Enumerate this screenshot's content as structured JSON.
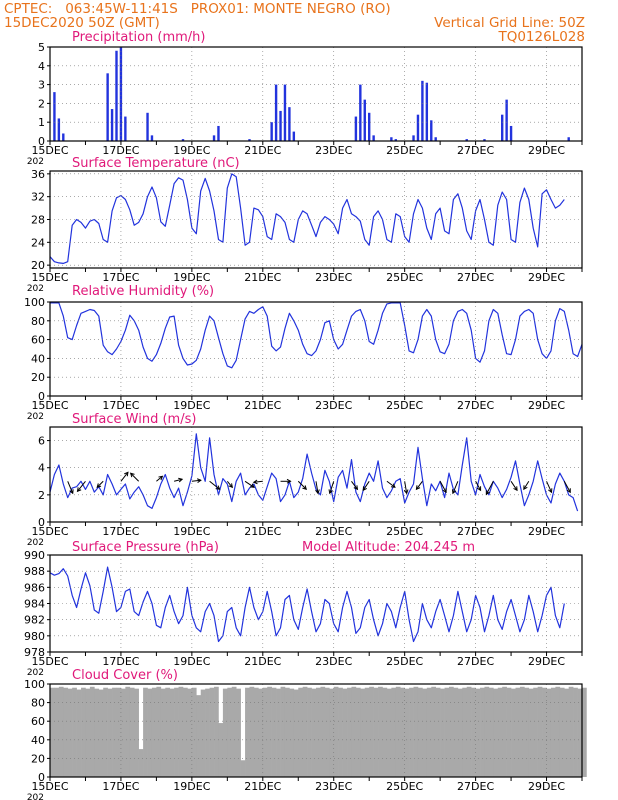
{
  "header": {
    "line1_left": "CPTEC:   063:45W-11:41S   PROX01: MONTE NEGRO (RO)",
    "line2_left": "15DEC2020 50Z (GMT)",
    "line2_right": "Vertical Grid Line: 50Z",
    "line3_right": "TQ0126L028"
  },
  "colors": {
    "header": "#e8731c",
    "panel_title": "#e0197a",
    "series": "#2233dd",
    "cloud_fill": "#a9a9a9",
    "axis": "#000000",
    "grid": "#777777"
  },
  "x_axis": {
    "range": [
      "2020-12-15",
      "2020-12-30"
    ],
    "tick_labels": [
      "15DEC",
      "17DEC",
      "19DEC",
      "21DEC",
      "23DEC",
      "25DEC",
      "27DEC",
      "29DEC"
    ],
    "tick_dates": [
      "2020-12-15",
      "2020-12-17",
      "2020-12-19",
      "2020-12-21",
      "2020-12-23",
      "2020-12-25",
      "2020-12-27",
      "2020-12-29"
    ],
    "year_fragment": "202"
  },
  "chart_data": [
    {
      "id": "precipitation",
      "type": "bar",
      "title": "Precipitation (mm/h)",
      "ylim": [
        0,
        5
      ],
      "yticks": [
        0,
        1,
        2,
        3,
        4,
        5
      ],
      "grid": true,
      "x": [
        "2020-12-15T03",
        "2020-12-15T06",
        "2020-12-15T09",
        "2020-12-16T15",
        "2020-12-16T18",
        "2020-12-16T21",
        "2020-12-17T00",
        "2020-12-17T03",
        "2020-12-17T18",
        "2020-12-17T21",
        "2020-12-18T18",
        "2020-12-19T15",
        "2020-12-19T18",
        "2020-12-20T15",
        "2020-12-21T06",
        "2020-12-21T09",
        "2020-12-21T12",
        "2020-12-21T15",
        "2020-12-21T18",
        "2020-12-21T21",
        "2020-12-23T15",
        "2020-12-23T18",
        "2020-12-23T21",
        "2020-12-24T00",
        "2020-12-24T03",
        "2020-12-24T15",
        "2020-12-24T18",
        "2020-12-25T06",
        "2020-12-25T09",
        "2020-12-25T12",
        "2020-12-25T15",
        "2020-12-25T18",
        "2020-12-25T21",
        "2020-12-26T18",
        "2020-12-27T06",
        "2020-12-27T18",
        "2020-12-27T21",
        "2020-12-28T00",
        "2020-12-29T15"
      ],
      "values": [
        2.6,
        1.2,
        0.4,
        3.6,
        1.7,
        4.8,
        5.0,
        1.3,
        1.5,
        0.3,
        0.1,
        0.3,
        0.8,
        0.1,
        1.0,
        3.0,
        1.6,
        3.0,
        1.8,
        0.5,
        1.3,
        3.0,
        2.2,
        1.5,
        0.3,
        0.2,
        0.1,
        0.3,
        1.4,
        3.2,
        3.1,
        1.1,
        0.2,
        0.1,
        0.1,
        1.4,
        2.2,
        0.8,
        0.2
      ]
    },
    {
      "id": "temperature",
      "type": "line",
      "title": "Surface Temperature (nC)",
      "ylim": [
        19.5,
        36.5
      ],
      "yticks": [
        20,
        24,
        28,
        32,
        36
      ],
      "grid": true,
      "x_step_hours": 3,
      "values": [
        21.5,
        20.6,
        20.4,
        20.3,
        20.6,
        27.0,
        28.0,
        27.5,
        26.5,
        27.7,
        28.0,
        27.3,
        24.5,
        24.0,
        29.5,
        31.8,
        32.2,
        31.5,
        29.7,
        27.0,
        27.5,
        29.0,
        32.0,
        33.7,
        31.8,
        27.6,
        26.8,
        30.5,
        34.3,
        35.3,
        34.9,
        31.5,
        26.5,
        25.5,
        33.0,
        35.2,
        33.0,
        29.5,
        24.5,
        24.0,
        33.5,
        36.0,
        35.5,
        30.0,
        23.5,
        24.0,
        30.0,
        29.7,
        28.5,
        25.0,
        24.5,
        29.0,
        28.5,
        27.5,
        24.5,
        24.0,
        28.0,
        29.5,
        29.0,
        27.0,
        25.0,
        27.5,
        28.5,
        28.0,
        27.2,
        25.5,
        30.0,
        31.5,
        29.0,
        28.5,
        27.7,
        24.5,
        23.5,
        28.5,
        29.5,
        28.0,
        24.5,
        24.0,
        29.0,
        28.5,
        25.0,
        24.0,
        29.0,
        31.5,
        30.0,
        26.5,
        24.5,
        29.0,
        30.0,
        26.0,
        25.5,
        31.5,
        32.5,
        30.0,
        26.0,
        24.5,
        29.5,
        31.5,
        28.0,
        24.0,
        23.5,
        30.5,
        32.8,
        31.5,
        24.5,
        24.0,
        31.0,
        33.5,
        31.5,
        26.5,
        23.2,
        32.5,
        33.2,
        31.5,
        30.0,
        30.5,
        31.5
      ]
    },
    {
      "id": "humidity",
      "type": "line",
      "title": "Relative Humidity (%)",
      "ylim": [
        0,
        100
      ],
      "yticks": [
        0,
        20,
        40,
        60,
        80,
        100
      ],
      "grid": true,
      "x_step_hours": 3,
      "values": [
        99,
        99,
        99,
        85,
        62,
        60,
        75,
        88,
        90,
        92,
        91,
        85,
        54,
        47,
        44,
        50,
        58,
        70,
        86,
        80,
        70,
        52,
        40,
        37,
        44,
        56,
        72,
        84,
        85,
        54,
        40,
        33,
        34,
        38,
        50,
        70,
        85,
        80,
        62,
        45,
        32,
        30,
        38,
        60,
        82,
        90,
        88,
        92,
        95,
        85,
        53,
        48,
        52,
        72,
        88,
        80,
        70,
        55,
        45,
        43,
        48,
        60,
        78,
        80,
        60,
        50,
        55,
        70,
        85,
        90,
        92,
        80,
        58,
        55,
        70,
        88,
        98,
        99,
        99,
        99,
        75,
        48,
        46,
        60,
        85,
        92,
        85,
        60,
        47,
        45,
        55,
        80,
        90,
        92,
        88,
        70,
        40,
        36,
        48,
        80,
        92,
        88,
        65,
        45,
        44,
        60,
        85,
        90,
        92,
        88,
        60,
        45,
        40,
        48,
        80,
        93,
        90,
        70,
        45,
        42,
        55
      ]
    },
    {
      "id": "wind",
      "type": "line",
      "title": "Surface Wind (m/s)",
      "ylim": [
        0,
        7
      ],
      "yticks": [
        0,
        2,
        4,
        6
      ],
      "grid": true,
      "x_step_hours": 3,
      "values": [
        2.2,
        3.5,
        4.2,
        2.8,
        1.8,
        2.5,
        2.6,
        3.0,
        2.4,
        3.0,
        2.2,
        2.6,
        2.0,
        3.5,
        2.8,
        2.0,
        2.4,
        2.8,
        1.7,
        2.2,
        2.6,
        2.0,
        1.2,
        1.0,
        1.8,
        2.8,
        3.5,
        2.5,
        1.8,
        2.5,
        1.2,
        2.2,
        3.4,
        6.5,
        4.0,
        3.0,
        6.2,
        3.5,
        2.0,
        3.2,
        2.8,
        1.5,
        3.0,
        3.6,
        2.0,
        2.5,
        2.8,
        2.0,
        1.6,
        2.6,
        3.6,
        3.2,
        1.5,
        2.0,
        3.0,
        1.8,
        2.2,
        3.2,
        5.0,
        3.6,
        2.4,
        2.0,
        3.8,
        3.0,
        1.5,
        3.3,
        3.8,
        2.5,
        4.6,
        2.2,
        1.5,
        2.8,
        3.6,
        3.0,
        4.5,
        2.5,
        1.8,
        2.3,
        3.0,
        3.2,
        1.4,
        2.2,
        2.8,
        5.5,
        3.2,
        1.2,
        2.8,
        2.3,
        3.0,
        1.8,
        3.6,
        2.4,
        2.0,
        4.2,
        6.2,
        3.0,
        2.0,
        3.5,
        2.6,
        2.0,
        3.0,
        2.5,
        1.8,
        2.4,
        3.3,
        4.5,
        2.8,
        1.2,
        2.0,
        3.0,
        4.5,
        3.2,
        2.0,
        1.4,
        2.8,
        3.6,
        3.0,
        2.0,
        1.8,
        0.8
      ],
      "vector_times": [
        "2020-12-15T12",
        "2020-12-16T00",
        "2020-12-16T12",
        "2020-12-17T00",
        "2020-12-17T12",
        "2020-12-18T00",
        "2020-12-18T12",
        "2020-12-19T00",
        "2020-12-19T12",
        "2020-12-20T00",
        "2020-12-20T12",
        "2020-12-21T00",
        "2020-12-21T12",
        "2020-12-22T00",
        "2020-12-22T12",
        "2020-12-23T00",
        "2020-12-23T12",
        "2020-12-24T00",
        "2020-12-24T12",
        "2020-12-25T00",
        "2020-12-25T12",
        "2020-12-26T00",
        "2020-12-26T12",
        "2020-12-27T00",
        "2020-12-27T12",
        "2020-12-28T00",
        "2020-12-28T12",
        "2020-12-29T00",
        "2020-12-29T12"
      ],
      "vector_u": [
        0.5,
        -0.8,
        -0.6,
        0.7,
        -0.8,
        0.6,
        0.8,
        0.9,
        1.0,
        0.5,
        0.9,
        -0.9,
        1.0,
        0.8,
        0.2,
        -0.4,
        0.6,
        -0.6,
        0.8,
        0.2,
        -0.6,
        0.6,
        -0.5,
        0.5,
        -0.7,
        0.6,
        -0.5,
        0.5,
        0.6
      ],
      "vector_v": [
        -1.2,
        -1.0,
        -0.6,
        0.9,
        0.8,
        0.5,
        0.2,
        0.1,
        -0.8,
        -0.6,
        -0.6,
        -0.1,
        0.0,
        -0.8,
        -1.2,
        -1.2,
        -0.8,
        -0.9,
        -0.6,
        -1.2,
        -0.8,
        -1.1,
        -1.2,
        -0.9,
        -1.3,
        -0.9,
        -0.8,
        -1.1,
        -1.1
      ]
    },
    {
      "id": "pressure",
      "type": "line",
      "title": "Surface Pressure (hPa)",
      "annotation": "Model Altitude: 204.245 m",
      "ylim": [
        978,
        990
      ],
      "yticks": [
        978,
        980,
        982,
        984,
        986,
        988,
        990
      ],
      "grid": true,
      "x_step_hours": 3,
      "values": [
        987.8,
        987.5,
        987.7,
        988.3,
        987.4,
        985.0,
        983.5,
        985.8,
        987.8,
        986.2,
        983.2,
        982.8,
        985.5,
        988.5,
        986.0,
        983.0,
        983.5,
        985.5,
        985.8,
        983.0,
        982.5,
        984.2,
        985.5,
        984.0,
        981.3,
        981.0,
        983.5,
        985.0,
        983.0,
        981.5,
        982.5,
        986.0,
        982.5,
        981.0,
        980.5,
        983.0,
        984.0,
        982.5,
        979.3,
        980.0,
        983.0,
        983.5,
        981.0,
        980.0,
        983.5,
        986.0,
        983.5,
        982.0,
        983.0,
        985.5,
        983.0,
        980.0,
        981.0,
        984.5,
        985.0,
        982.0,
        980.8,
        983.5,
        985.8,
        983.0,
        980.5,
        981.5,
        984.5,
        984.0,
        981.5,
        980.5,
        983.5,
        985.5,
        983.5,
        980.3,
        981.0,
        983.5,
        984.5,
        982.0,
        980.0,
        981.5,
        984.0,
        983.0,
        981.0,
        983.5,
        985.5,
        982.0,
        979.3,
        980.5,
        984.0,
        982.0,
        981.0,
        983.0,
        984.5,
        982.5,
        980.5,
        982.5,
        985.5,
        983.0,
        980.5,
        982.0,
        985.0,
        983.5,
        980.5,
        982.5,
        985.0,
        982.0,
        980.8,
        983.0,
        984.5,
        982.5,
        980.5,
        982.0,
        985.0,
        983.0,
        980.5,
        982.5,
        985.0,
        986.0,
        982.5,
        981.0,
        984.0
      ]
    },
    {
      "id": "cloud",
      "type": "area",
      "title": "Cloud Cover (%)",
      "ylim": [
        0,
        100
      ],
      "yticks": [
        0,
        20,
        40,
        60,
        80,
        100
      ],
      "grid": true,
      "x_step_hours": 3,
      "values": [
        96,
        96,
        97,
        96,
        95,
        96,
        94,
        96,
        95,
        97,
        95,
        94,
        96,
        95,
        96,
        96,
        95,
        97,
        96,
        95,
        30,
        96,
        95,
        96,
        97,
        95,
        96,
        95,
        96,
        97,
        96,
        95,
        96,
        88,
        94,
        95,
        96,
        97,
        58,
        95,
        96,
        97,
        95,
        18,
        96,
        97,
        96,
        95,
        96,
        97,
        96,
        95,
        97,
        96,
        95,
        94,
        96,
        97,
        96,
        95,
        96,
        97,
        96,
        95,
        97,
        96,
        95,
        96,
        97,
        96,
        95,
        96,
        97,
        96,
        97,
        96,
        95,
        96,
        97,
        96,
        95,
        96,
        97,
        96,
        95,
        96,
        97,
        96,
        95,
        96,
        97,
        96,
        95,
        96,
        97,
        96,
        95,
        96,
        97,
        96,
        95,
        96,
        97,
        96,
        95,
        96,
        97,
        96,
        95,
        96,
        97,
        96,
        95,
        96,
        97,
        96,
        95,
        97,
        96,
        95,
        96
      ]
    }
  ]
}
